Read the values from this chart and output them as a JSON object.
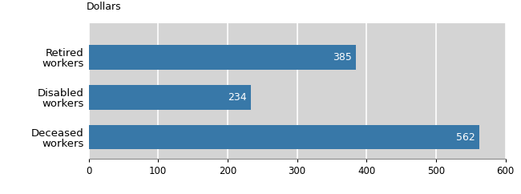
{
  "categories": [
    "Retired\nworkers",
    "Disabled\nworkers",
    "Deceased\nworkers"
  ],
  "values": [
    385,
    234,
    562
  ],
  "bar_color": "#3878A8",
  "background_color": "#D4D4D4",
  "text_color": "#FFFFFF",
  "label_color": "#000000",
  "title": "Dollars",
  "xlim": [
    0,
    600
  ],
  "xticks": [
    0,
    100,
    200,
    300,
    400,
    500,
    600
  ],
  "bar_height": 0.62,
  "fig_width": 6.5,
  "fig_height": 2.42,
  "dpi": 100,
  "title_fontsize": 9,
  "tick_fontsize": 8.5,
  "label_fontsize": 9.5,
  "value_fontsize": 9
}
